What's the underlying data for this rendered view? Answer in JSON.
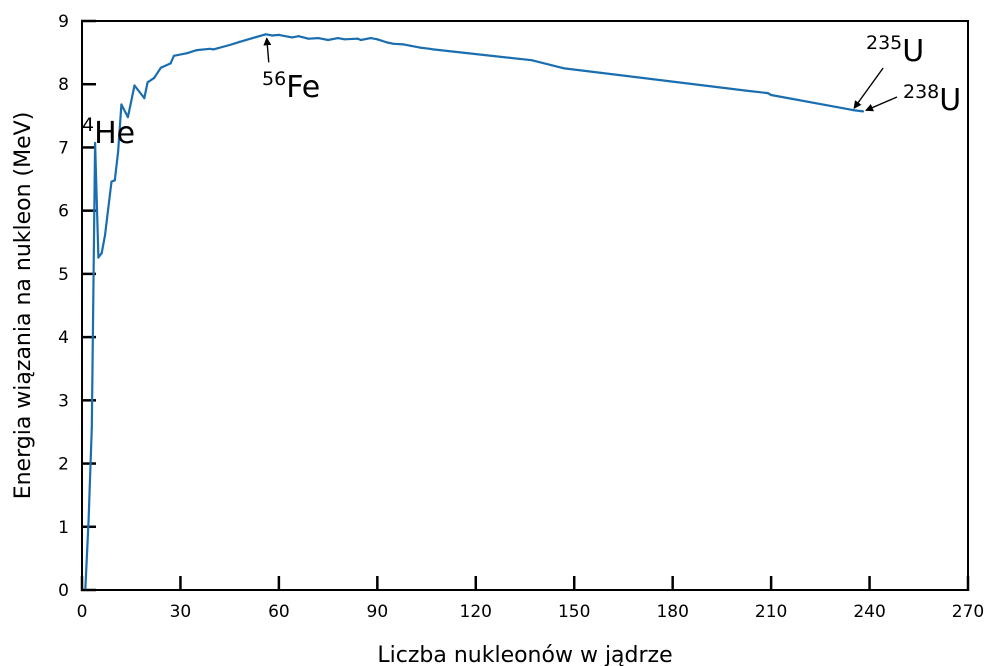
{
  "chart_data": {
    "type": "line",
    "title": "",
    "xlabel": "Liczba nukleonów w jądrze",
    "ylabel": "Energia wiązania na nukleon (MeV)",
    "xlim": [
      0,
      270
    ],
    "ylim": [
      0,
      9
    ],
    "xticks": [
      0,
      30,
      60,
      90,
      120,
      150,
      180,
      210,
      240,
      270
    ],
    "yticks": [
      0,
      1,
      2,
      3,
      4,
      5,
      6,
      7,
      8,
      9
    ],
    "grid": false,
    "legend": "none",
    "series_color": "#1a6eb0",
    "series": [
      {
        "x": [
          1,
          2,
          3,
          4,
          5,
          6,
          7,
          9,
          10,
          11,
          12,
          14,
          16,
          19,
          20,
          22,
          24,
          27,
          28,
          32,
          35,
          39,
          40,
          45,
          48,
          52,
          56,
          58,
          60,
          63,
          64,
          66,
          69,
          72,
          75,
          78,
          80,
          84,
          85,
          88,
          90,
          93,
          95,
          98,
          100,
          103,
          106,
          107,
          137,
          147,
          202,
          209,
          210,
          235,
          238
        ],
        "y": [
          0,
          1.11,
          2.57,
          7.07,
          5.26,
          5.33,
          5.61,
          6.46,
          6.48,
          6.93,
          7.68,
          7.48,
          7.98,
          7.78,
          8.03,
          8.1,
          8.26,
          8.33,
          8.45,
          8.49,
          8.54,
          8.56,
          8.55,
          8.62,
          8.67,
          8.73,
          8.79,
          8.77,
          8.78,
          8.75,
          8.74,
          8.76,
          8.72,
          8.73,
          8.7,
          8.73,
          8.71,
          8.72,
          8.7,
          8.73,
          8.71,
          8.66,
          8.64,
          8.63,
          8.61,
          8.58,
          8.56,
          8.55,
          8.38,
          8.25,
          7.9,
          7.86,
          7.83,
          7.59,
          7.57
        ]
      }
    ],
    "annotations": [
      {
        "sup": "4",
        "main": "He",
        "x": 4,
        "y": 7.07
      },
      {
        "sup": "56",
        "main": "Fe",
        "x": 56,
        "y": 8.79
      },
      {
        "sup": "235",
        "main": "U",
        "x": 235,
        "y": 7.59
      },
      {
        "sup": "238",
        "main": "U",
        "x": 238,
        "y": 7.57
      }
    ]
  }
}
